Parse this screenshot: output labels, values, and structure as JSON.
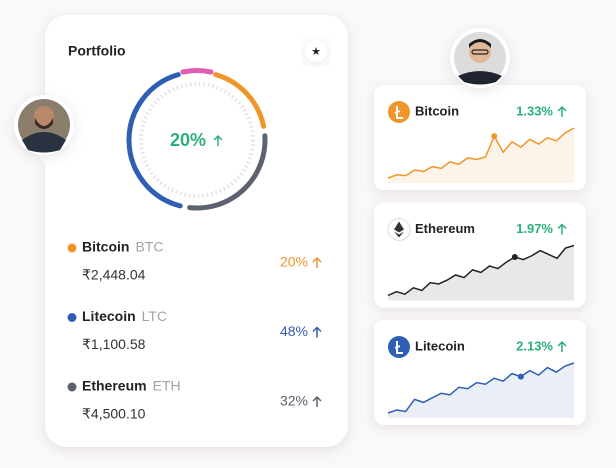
{
  "portfolio": {
    "title": "Portfolio",
    "center_change": "20%",
    "assets": [
      {
        "name": "Bitcoin",
        "ticker": "BTC",
        "amount": "₹2,448.04",
        "share": 20,
        "share_label": "20%",
        "color": "#f0952a"
      },
      {
        "name": "Litecoin",
        "ticker": "LTC",
        "amount": "₹1,100.58",
        "share": 48,
        "share_label": "48%",
        "color": "#2f5fb3"
      },
      {
        "name": "Ethereum",
        "ticker": "ETH",
        "amount": "₹4,500.10",
        "share": 32,
        "share_label": "32%",
        "color": "#5c6270"
      }
    ]
  },
  "market": [
    {
      "name": "Bitcoin",
      "change": "1.33%",
      "color": "#f0952a",
      "marker": 12,
      "trend": [
        10,
        14,
        13,
        20,
        18,
        24,
        22,
        30,
        27,
        35,
        33,
        36,
        62,
        42,
        55,
        48,
        58,
        52,
        60,
        56,
        66,
        72
      ]
    },
    {
      "name": "Ethereum",
      "change": "1.97%",
      "color": "#222222",
      "marker": 15,
      "trend": [
        10,
        16,
        12,
        22,
        18,
        30,
        28,
        34,
        42,
        38,
        50,
        46,
        56,
        52,
        62,
        70,
        66,
        72,
        80,
        74,
        68,
        84,
        88
      ]
    },
    {
      "name": "Litecoin",
      "change": "2.13%",
      "color": "#2f5fb3",
      "marker": 15,
      "trend": [
        10,
        14,
        12,
        28,
        24,
        30,
        36,
        34,
        44,
        42,
        50,
        48,
        56,
        52,
        62,
        58,
        66,
        60,
        70,
        64,
        72,
        76
      ]
    }
  ]
}
